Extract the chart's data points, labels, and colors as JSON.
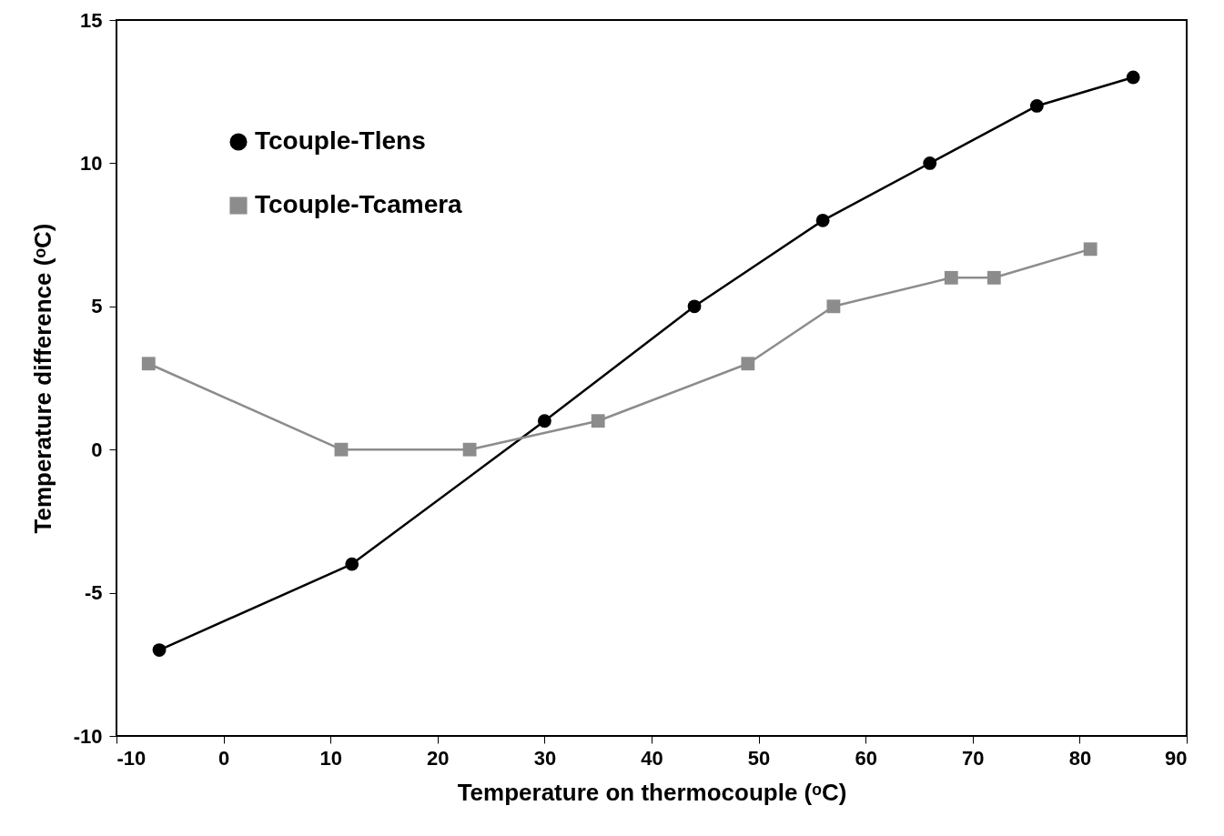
{
  "chart_data": {
    "type": "line",
    "xlabel": "Temperature on thermocouple (ᵒC)",
    "ylabel": "Temperature difference (ᵒC)",
    "xlim": [
      -10,
      90
    ],
    "xticks": [
      -10,
      0,
      10,
      20,
      30,
      40,
      50,
      60,
      70,
      80,
      90
    ],
    "ylim": [
      -10,
      15
    ],
    "yticks": [
      -10,
      -5,
      0,
      5,
      10,
      15
    ],
    "grid": false,
    "legend": "top left",
    "line_style": "solid",
    "series": [
      {
        "name": "Tcouple-Tlens",
        "color": "#000000",
        "marker": "circle",
        "x": [
          -6,
          12,
          30,
          44,
          56,
          66,
          76,
          85
        ],
        "values": [
          -7,
          -4,
          1,
          5,
          8,
          10,
          12,
          13
        ]
      },
      {
        "name": "Tcouple-Tcamera",
        "color": "#8c8c8c",
        "marker": "square",
        "x": [
          -7,
          11,
          23,
          35,
          49,
          57,
          68,
          72,
          81
        ],
        "values": [
          3,
          0,
          0,
          1,
          3,
          5,
          6,
          6,
          7
        ]
      }
    ]
  }
}
